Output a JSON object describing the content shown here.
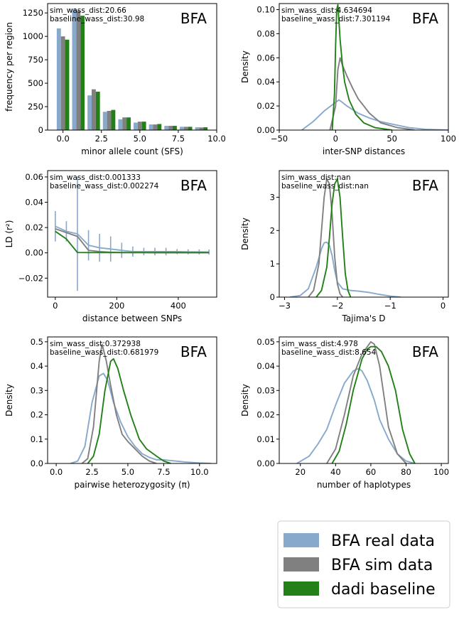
{
  "colors": {
    "real": "#87a9cc",
    "sim": "#808080",
    "dadi": "#238018"
  },
  "legend": {
    "placement": "bottom-right",
    "entries": [
      {
        "label": "BFA real data",
        "color": "#87a9cc"
      },
      {
        "label": "BFA sim data",
        "color": "#808080"
      },
      {
        "label": "dadi baseline",
        "color": "#238018"
      }
    ]
  },
  "chart_data": [
    {
      "type": "bar",
      "panel_label": "BFA",
      "annotations": [
        "sim_wass_dist:20.66",
        "baseline_wass_dist:30.98"
      ],
      "xlabel": "minor allele count (SFS)",
      "ylabel": "frequency per region",
      "xlim": [
        -1.0,
        10.0
      ],
      "ylim": [
        0,
        1350
      ],
      "xticks": [
        0.0,
        2.5,
        5.0,
        7.5,
        10.0
      ],
      "xtick_labels": [
        "0.0",
        "2.5",
        "5.0",
        "7.5",
        "10.0"
      ],
      "yticks": [
        0,
        250,
        500,
        750,
        1000,
        1250
      ],
      "ytick_labels": [
        "0",
        "250",
        "500",
        "750",
        "1000",
        "1250"
      ],
      "categories": [
        0,
        1,
        2,
        3,
        4,
        5,
        6,
        7,
        8,
        9
      ],
      "series": [
        {
          "key": "real",
          "values": [
            1085,
            1290,
            370,
            195,
            115,
            80,
            60,
            45,
            35,
            30
          ]
        },
        {
          "key": "sim",
          "values": [
            1000,
            1275,
            435,
            205,
            135,
            90,
            60,
            45,
            35,
            28
          ]
        },
        {
          "key": "dadi",
          "values": [
            965,
            1220,
            410,
            215,
            135,
            90,
            65,
            45,
            35,
            30
          ]
        }
      ]
    },
    {
      "type": "line",
      "panel_label": "BFA",
      "annotations": [
        "sim_wass_dist:4.634694",
        "baseline_wass_dist:7.301194"
      ],
      "xlabel": "inter-SNP distances",
      "ylabel": "Density",
      "xlim": [
        -50,
        100
      ],
      "ylim": [
        0,
        0.105
      ],
      "xticks": [
        -50,
        0,
        50,
        100
      ],
      "xtick_labels": [
        "−50",
        "0",
        "50",
        "100"
      ],
      "yticks": [
        0,
        0.02,
        0.04,
        0.06,
        0.08,
        0.1
      ],
      "ytick_labels": [
        "0.00",
        "0.02",
        "0.04",
        "0.06",
        "0.08",
        "0.10"
      ],
      "series": [
        {
          "key": "real",
          "x": [
            -30,
            -20,
            -10,
            0,
            3,
            6,
            10,
            20,
            30,
            40,
            50,
            65,
            80,
            100
          ],
          "y": [
            0,
            0.007,
            0.016,
            0.023,
            0.025,
            0.023,
            0.02,
            0.014,
            0.01,
            0.007,
            0.005,
            0.002,
            0.0006,
            0
          ]
        },
        {
          "key": "sim",
          "x": [
            -5,
            0,
            2,
            4,
            6,
            10,
            15,
            20,
            25,
            30,
            40,
            55,
            70
          ],
          "y": [
            0,
            0.02,
            0.05,
            0.06,
            0.054,
            0.045,
            0.035,
            0.026,
            0.02,
            0.014,
            0.006,
            0.002,
            0
          ]
        },
        {
          "key": "dadi",
          "x": [
            -3,
            -1,
            0,
            1,
            2,
            3,
            4,
            6,
            8,
            12,
            18,
            25,
            35,
            50
          ],
          "y": [
            0,
            0.03,
            0.07,
            0.1,
            0.104,
            0.09,
            0.075,
            0.055,
            0.04,
            0.025,
            0.013,
            0.006,
            0.002,
            0
          ]
        }
      ]
    },
    {
      "type": "line",
      "panel_label": "BFA",
      "annotations": [
        "sim_wass_dist:0.001333",
        "baseline_wass_dist:0.002274"
      ],
      "xlabel": "distance between SNPs",
      "ylabel": "LD (r²)",
      "xlim": [
        -25,
        525
      ],
      "ylim": [
        -0.035,
        0.065
      ],
      "xticks": [
        0,
        200,
        400
      ],
      "xtick_labels": [
        "0",
        "200",
        "400"
      ],
      "yticks": [
        -0.02,
        0,
        0.02,
        0.04,
        0.06
      ],
      "ytick_labels": [
        "−0.02",
        "0.00",
        "0.02",
        "0.04",
        "0.06"
      ],
      "series": [
        {
          "key": "real",
          "x": [
            0,
            36,
            72,
            108,
            144,
            180,
            216,
            252,
            288,
            324,
            360,
            396,
            432,
            468,
            500
          ],
          "y": [
            0.021,
            0.017,
            0.015,
            0.006,
            0.004,
            0.003,
            0.002,
            0.001,
            0.001,
            0.001,
            0.001,
            0.001,
            0.0008,
            0.0007,
            0.0006
          ],
          "err": [
            0.012,
            0.008,
            0.045,
            0.012,
            0.011,
            0.01,
            0.006,
            0.004,
            0.003,
            0.003,
            0.003,
            0.002,
            0.002,
            0.002,
            0.002
          ]
        },
        {
          "key": "sim",
          "x": [
            0,
            36,
            72,
            108,
            144,
            180,
            216,
            252,
            288,
            324,
            360,
            396,
            432,
            468,
            500
          ],
          "y": [
            0.019,
            0.016,
            0.013,
            0.002,
            0.001,
            0.0005,
            0.0003,
            0.0002,
            0.0002,
            0.0001,
            0.0001,
            0.0001,
            0.0001,
            0.0001,
            0.0001
          ]
        },
        {
          "key": "dadi",
          "x": [
            0,
            36,
            72,
            108,
            144,
            180,
            216,
            252,
            288,
            324,
            360,
            396,
            432,
            468,
            500
          ],
          "y": [
            0.017,
            0.011,
            0.0003,
            0.0002,
            0.0002,
            0.0002,
            0.0002,
            0.0002,
            0.0002,
            0.0002,
            0.0002,
            0.0002,
            0.0002,
            0.0002,
            0.0002
          ]
        }
      ]
    },
    {
      "type": "line",
      "panel_label": "BFA",
      "annotations": [
        "sim_wass_dist:nan",
        "baseline_wass_dist:nan"
      ],
      "xlabel": "Tajima's D",
      "ylabel": "Density",
      "xlim": [
        -3.1,
        0.1
      ],
      "ylim": [
        0,
        3.8
      ],
      "xticks": [
        -3,
        -2,
        -1,
        0
      ],
      "xtick_labels": [
        "−3",
        "−2",
        "−1",
        "0"
      ],
      "yticks": [
        0,
        1,
        2,
        3
      ],
      "ytick_labels": [
        "0",
        "1",
        "2",
        "3"
      ],
      "series": [
        {
          "key": "real",
          "x": [
            -2.9,
            -2.7,
            -2.55,
            -2.4,
            -2.3,
            -2.25,
            -2.2,
            -2.15,
            -2.1,
            -2.05,
            -2.0,
            -1.9,
            -1.75,
            -1.6,
            -1.4,
            -1.2,
            -1.0,
            -0.8
          ],
          "y": [
            0,
            0.05,
            0.25,
            0.9,
            1.45,
            1.63,
            1.65,
            1.55,
            1.25,
            0.8,
            0.45,
            0.25,
            0.2,
            0.18,
            0.14,
            0.08,
            0.03,
            0
          ]
        },
        {
          "key": "sim",
          "x": [
            -2.55,
            -2.45,
            -2.35,
            -2.3,
            -2.25,
            -2.2,
            -2.15,
            -2.1,
            -2.05,
            -2.0,
            -1.95,
            -1.9
          ],
          "y": [
            0,
            0.2,
            1.0,
            2.0,
            3.0,
            3.55,
            3.4,
            2.5,
            1.2,
            0.4,
            0.1,
            0
          ]
        },
        {
          "key": "dadi",
          "x": [
            -2.4,
            -2.3,
            -2.2,
            -2.15,
            -2.1,
            -2.05,
            -2.0,
            -1.95,
            -1.9,
            -1.85,
            -1.8,
            -1.75
          ],
          "y": [
            0,
            0.2,
            0.9,
            1.8,
            2.8,
            3.4,
            3.55,
            3.0,
            1.8,
            0.7,
            0.2,
            0
          ]
        }
      ]
    },
    {
      "type": "line",
      "panel_label": "BFA",
      "annotations": [
        "sim_wass_dist:0.372938",
        "baseline_wass_dist:0.681979"
      ],
      "xlabel": "pairwise heterozygosity (π)",
      "ylabel": "Density",
      "xlim": [
        -0.6,
        11.2
      ],
      "ylim": [
        0,
        0.52
      ],
      "xticks": [
        0,
        2.5,
        5,
        7.5,
        10
      ],
      "xtick_labels": [
        "0.0",
        "2.5",
        "5.0",
        "7.5",
        "10.0"
      ],
      "yticks": [
        0,
        0.1,
        0.2,
        0.3,
        0.4,
        0.5
      ],
      "ytick_labels": [
        "0.0",
        "0.1",
        "0.2",
        "0.3",
        "0.4",
        "0.5"
      ],
      "series": [
        {
          "key": "real",
          "x": [
            1.0,
            1.5,
            2.0,
            2.5,
            3.0,
            3.3,
            3.6,
            4.0,
            4.5,
            5.0,
            5.5,
            6.0,
            6.5,
            7.0,
            7.5,
            8.0,
            9.0,
            10.0,
            10.8
          ],
          "y": [
            0,
            0.01,
            0.07,
            0.25,
            0.36,
            0.37,
            0.34,
            0.25,
            0.17,
            0.11,
            0.07,
            0.04,
            0.025,
            0.015,
            0.015,
            0.012,
            0.006,
            0.002,
            0
          ]
        },
        {
          "key": "sim",
          "x": [
            1.8,
            2.2,
            2.6,
            3.0,
            3.2,
            3.5,
            3.8,
            4.2,
            4.6,
            5.0,
            5.5,
            6.0,
            6.5,
            7.0
          ],
          "y": [
            0,
            0.02,
            0.15,
            0.42,
            0.49,
            0.42,
            0.32,
            0.2,
            0.12,
            0.09,
            0.06,
            0.03,
            0.01,
            0
          ]
        },
        {
          "key": "dadi",
          "x": [
            2.2,
            2.6,
            3.0,
            3.4,
            3.8,
            4.0,
            4.3,
            4.7,
            5.2,
            5.8,
            6.3,
            7.0,
            7.5,
            8.0
          ],
          "y": [
            0,
            0.03,
            0.12,
            0.3,
            0.42,
            0.43,
            0.39,
            0.3,
            0.2,
            0.1,
            0.06,
            0.03,
            0.01,
            0
          ]
        }
      ]
    },
    {
      "type": "line",
      "panel_label": "BFA",
      "annotations": [
        "sim_wass_dist:4.978",
        "baseline_wass_dist:8.654"
      ],
      "xlabel": "number of haplotypes",
      "ylabel": "Density",
      "xlim": [
        8,
        104
      ],
      "ylim": [
        0,
        0.052
      ],
      "xticks": [
        20,
        40,
        60,
        80,
        100
      ],
      "xtick_labels": [
        "20",
        "40",
        "60",
        "80",
        "100"
      ],
      "yticks": [
        0,
        0.01,
        0.02,
        0.03,
        0.04,
        0.05
      ],
      "ytick_labels": [
        "0.00",
        "0.01",
        "0.02",
        "0.03",
        "0.04",
        "0.05"
      ],
      "series": [
        {
          "key": "real",
          "x": [
            18,
            25,
            30,
            35,
            40,
            45,
            50,
            53,
            55,
            58,
            62,
            65,
            70,
            75,
            80,
            85
          ],
          "y": [
            0,
            0.003,
            0.008,
            0.014,
            0.024,
            0.033,
            0.038,
            0.039,
            0.038,
            0.034,
            0.026,
            0.018,
            0.01,
            0.004,
            0.001,
            0
          ]
        },
        {
          "key": "sim",
          "x": [
            35,
            40,
            45,
            50,
            55,
            58,
            60,
            62,
            65,
            68,
            70,
            75,
            80
          ],
          "y": [
            0,
            0.006,
            0.02,
            0.036,
            0.045,
            0.048,
            0.05,
            0.049,
            0.04,
            0.025,
            0.015,
            0.004,
            0
          ]
        },
        {
          "key": "dadi",
          "x": [
            38,
            42,
            46,
            50,
            55,
            58,
            60,
            63,
            66,
            70,
            74,
            78,
            82,
            85
          ],
          "y": [
            0,
            0.005,
            0.016,
            0.03,
            0.043,
            0.047,
            0.048,
            0.048,
            0.046,
            0.04,
            0.03,
            0.014,
            0.004,
            0
          ]
        }
      ]
    }
  ]
}
